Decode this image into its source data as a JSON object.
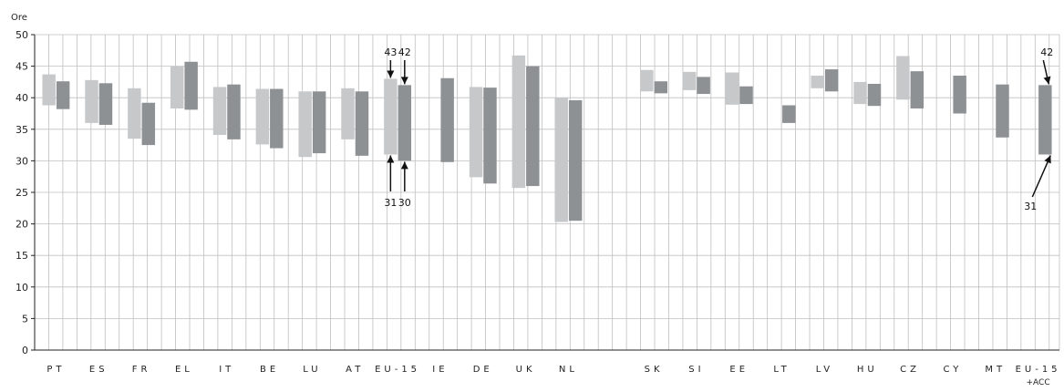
{
  "chart_data": {
    "type": "bar",
    "ylabel": "Ore",
    "ylim": [
      0,
      50
    ],
    "yticks": [
      0,
      5,
      10,
      15,
      20,
      25,
      30,
      35,
      40,
      45,
      50
    ],
    "grid": true,
    "colors": {
      "light": "#c6c8ca",
      "dark": "#8e9194",
      "grid": "#bfbfbf",
      "axis": "#222222"
    },
    "categories": [
      {
        "label": "PT",
        "light": [
          38.8,
          43.7
        ],
        "dark": [
          38.2,
          42.6
        ]
      },
      {
        "label": "ES",
        "light": [
          36.0,
          42.8
        ],
        "dark": [
          35.7,
          42.3
        ]
      },
      {
        "label": "FR",
        "light": [
          33.5,
          41.5
        ],
        "dark": [
          32.5,
          39.2
        ]
      },
      {
        "label": "EL",
        "light": [
          38.3,
          45.0
        ],
        "dark": [
          38.1,
          45.7
        ]
      },
      {
        "label": "IT",
        "light": [
          34.1,
          41.7
        ],
        "dark": [
          33.4,
          42.1
        ]
      },
      {
        "label": "BE",
        "light": [
          32.6,
          41.4
        ],
        "dark": [
          32.0,
          41.4
        ]
      },
      {
        "label": "LU",
        "light": [
          30.6,
          41.0
        ],
        "dark": [
          31.2,
          41.0
        ]
      },
      {
        "label": "AT",
        "light": [
          33.4,
          41.5
        ],
        "dark": [
          30.8,
          41.0
        ]
      },
      {
        "label": "EU-15",
        "light": [
          31,
          43
        ],
        "dark": [
          30,
          42
        ]
      },
      {
        "label": "IE",
        "light": null,
        "dark": [
          29.8,
          43.1
        ]
      },
      {
        "label": "DE",
        "light": [
          27.4,
          41.7
        ],
        "dark": [
          26.4,
          41.6
        ]
      },
      {
        "label": "UK",
        "light": [
          25.7,
          46.7
        ],
        "dark": [
          26.0,
          45.0
        ]
      },
      {
        "label": "NL",
        "light": [
          20.3,
          40.0
        ],
        "dark": [
          20.5,
          39.6
        ]
      },
      {
        "label": "",
        "light": null,
        "dark": null
      },
      {
        "label": "SK",
        "light": [
          41.0,
          44.4
        ],
        "dark": [
          40.7,
          42.6
        ]
      },
      {
        "label": "SI",
        "light": [
          41.2,
          44.1
        ],
        "dark": [
          40.6,
          43.3
        ]
      },
      {
        "label": "EE",
        "light": [
          38.9,
          44.0
        ],
        "dark": [
          39.0,
          41.8
        ]
      },
      {
        "label": "LT",
        "light": null,
        "dark": [
          36.0,
          38.8
        ]
      },
      {
        "label": "LV",
        "light": [
          41.5,
          43.5
        ],
        "dark": [
          41.0,
          44.5
        ]
      },
      {
        "label": "HU",
        "light": [
          39.0,
          42.5
        ],
        "dark": [
          38.7,
          42.2
        ]
      },
      {
        "label": "CZ",
        "light": [
          39.7,
          46.6
        ],
        "dark": [
          38.3,
          44.2
        ]
      },
      {
        "label": "CY",
        "light": null,
        "dark": [
          37.5,
          43.5
        ]
      },
      {
        "label": "MT",
        "light": null,
        "dark": [
          33.7,
          42.1
        ]
      },
      {
        "label": "EU-15\n+ACC",
        "light": null,
        "dark": [
          31,
          42
        ]
      }
    ],
    "annotations": [
      {
        "text": "43",
        "category": 8,
        "bar": "light",
        "value": 43,
        "pos": "above"
      },
      {
        "text": "42",
        "category": 8,
        "bar": "dark",
        "value": 42,
        "pos": "above"
      },
      {
        "text": "31",
        "category": 8,
        "bar": "light",
        "value": 31,
        "pos": "below"
      },
      {
        "text": "30",
        "category": 8,
        "bar": "dark",
        "value": 30,
        "pos": "below"
      },
      {
        "text": "42",
        "category": 23,
        "bar": "dark",
        "value": 42,
        "pos": "above-diag"
      },
      {
        "text": "31",
        "category": 23,
        "bar": "dark",
        "value": 31,
        "pos": "below-diag"
      }
    ]
  }
}
